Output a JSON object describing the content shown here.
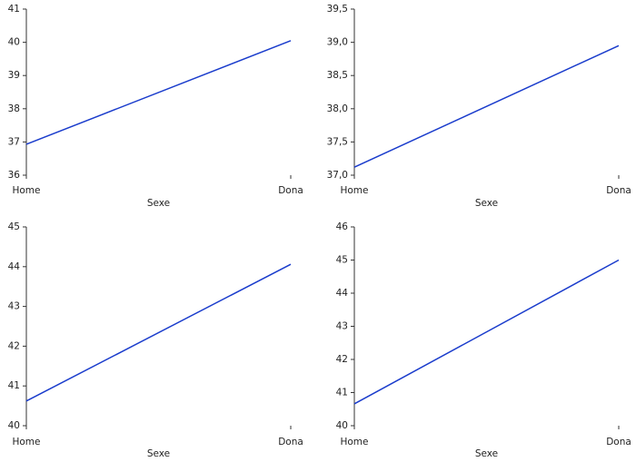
{
  "chart_data": [
    {
      "type": "line",
      "categories": [
        "Home",
        "Dona"
      ],
      "values": [
        36.93,
        40.05
      ],
      "color": "#1a3ccc",
      "x_label": "Sexe",
      "ylim": [
        36,
        41
      ],
      "yticks": [
        36,
        37,
        38,
        39,
        40,
        41
      ]
    },
    {
      "type": "line",
      "categories": [
        "Home",
        "Dona"
      ],
      "values": [
        37.12,
        38.95
      ],
      "color": "#1a3ccc",
      "x_label": "Sexe",
      "ylim": [
        37,
        39.5
      ],
      "yticks": [
        {
          "value": 37,
          "label": "37,0"
        },
        {
          "value": 37.5,
          "label": "37,5"
        },
        {
          "value": 38,
          "label": "38,0"
        },
        {
          "value": 38.5,
          "label": "38,5"
        },
        {
          "value": 39,
          "label": "39,0"
        },
        {
          "value": 39.5,
          "label": "39,5"
        }
      ]
    },
    {
      "type": "line",
      "categories": [
        "Home",
        "Dona"
      ],
      "values": [
        40.62,
        44.06
      ],
      "color": "#1a3ccc",
      "x_label": "Sexe",
      "ylim": [
        40,
        45
      ],
      "yticks": [
        40,
        41,
        42,
        43,
        44,
        45
      ]
    },
    {
      "type": "line",
      "categories": [
        "Home",
        "Dona"
      ],
      "values": [
        40.66,
        45.0
      ],
      "color": "#1a3ccc",
      "x_label": "Sexe",
      "ylim": [
        40,
        46
      ],
      "yticks": [
        40,
        41,
        42,
        43,
        44,
        45,
        46
      ]
    }
  ]
}
